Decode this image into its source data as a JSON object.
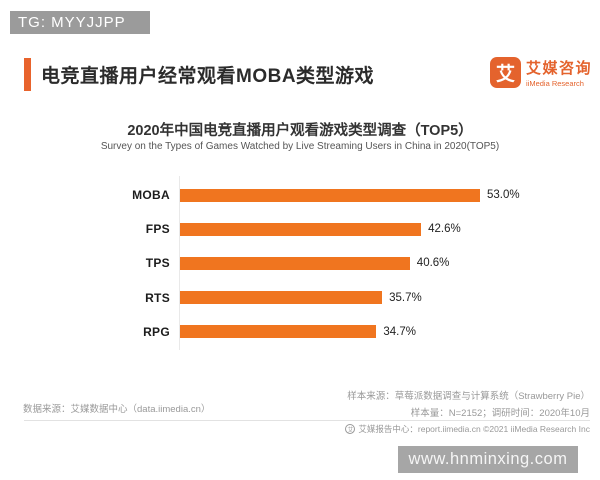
{
  "watermarks": {
    "top": "TG: MYYJJPP",
    "bottom": "www.hnminxing.com"
  },
  "header": {
    "title": "电竞直播用户经常观看MOBA类型游戏",
    "accent_color": "#E8632C",
    "logo": {
      "glyph": "艾",
      "brand_cn": "艾媒咨询",
      "brand_en": "iiMedia Research",
      "color": "#E4632D"
    }
  },
  "chart_data": {
    "type": "bar",
    "orientation": "horizontal",
    "title": "2020年中国电竞直播用户观看游戏类型调查（TOP5）",
    "subtitle": "Survey on the Types of Games Watched by Live Streaming Users in China in 2020(TOP5)",
    "categories": [
      "MOBA",
      "FPS",
      "TPS",
      "RTS",
      "RPG"
    ],
    "values": [
      53.0,
      42.6,
      40.6,
      35.7,
      34.7
    ],
    "value_labels": [
      "53.0%",
      "42.6%",
      "40.6%",
      "35.7%",
      "34.7%"
    ],
    "bar_color": "#F0751F",
    "xlim": [
      0,
      60
    ],
    "grid": false,
    "legend_position": "none"
  },
  "footer": {
    "data_source": "数据来源：艾媒数据中心（data.iimedia.cn）",
    "sample_source": "样本来源：草莓派数据调查与计算系统（Strawberry Pie）",
    "sample_info": "样本量：N=2152；调研时间：2020年10月",
    "report": "艾媒报告中心：report.iimedia.cn ©2021 iiMedia Research Inc",
    "report_icon_glyph": "艾"
  }
}
